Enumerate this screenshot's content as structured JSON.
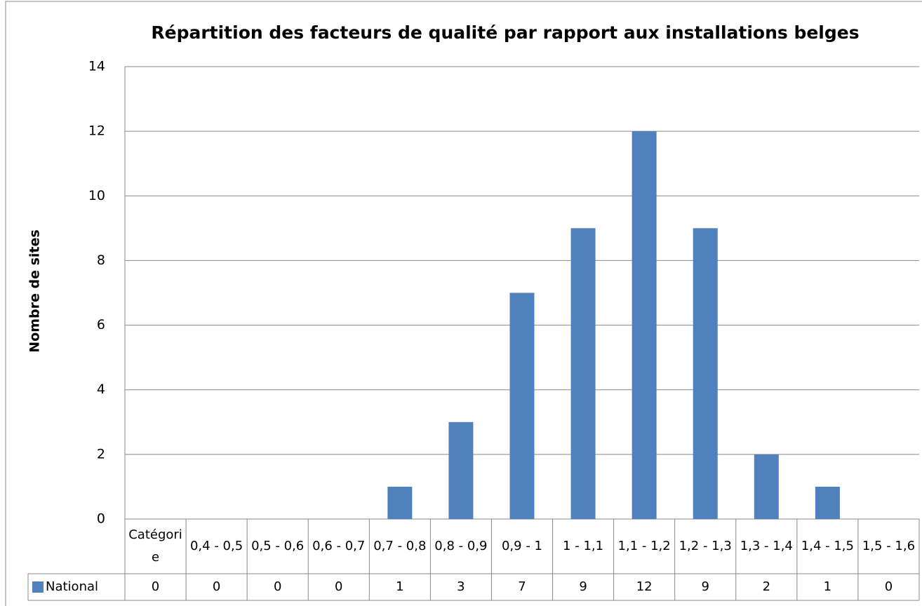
{
  "chart_data": {
    "type": "bar",
    "title": "Répartition des facteurs de qualité par rapport aux installations belges",
    "y_label": "Nombre de sites",
    "categories": [
      "Catégorie",
      "0,4 - 0,5",
      "0,5 - 0,6",
      "0,6 - 0,7",
      "0,7 - 0,8",
      "0,8 - 0,9",
      "0,9 - 1",
      "1 - 1,1",
      "1,1 - 1,2",
      "1,2 - 1,3",
      "1,3 - 1,4",
      "1,4 - 1,5",
      "1,5 - 1,6"
    ],
    "series": [
      {
        "name": "National",
        "color": "#4f81bd",
        "values": [
          0,
          0,
          0,
          0,
          1,
          3,
          7,
          9,
          12,
          9,
          2,
          1,
          0
        ]
      }
    ],
    "ylim": [
      0,
      14
    ],
    "yticks": [
      0,
      2,
      4,
      6,
      8,
      10,
      12,
      14
    ],
    "grid": true,
    "legend": "data-table"
  }
}
